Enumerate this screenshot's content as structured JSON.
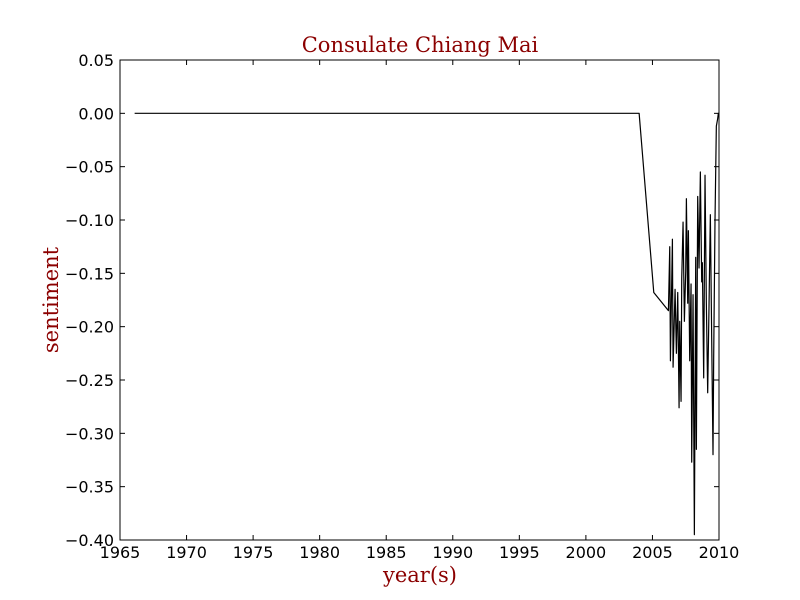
{
  "chart_data": {
    "type": "line",
    "title": "Consulate Chiang Mai",
    "xlabel": "year(s)",
    "ylabel": "sentiment",
    "xlim": [
      1965,
      2010
    ],
    "ylim": [
      -0.4,
      0.05
    ],
    "xticks": [
      1965,
      1970,
      1975,
      1980,
      1985,
      1990,
      1995,
      2000,
      2005,
      2010
    ],
    "yticks": [
      0.05,
      0.0,
      -0.05,
      -0.1,
      -0.15,
      -0.2,
      -0.25,
      -0.3,
      -0.35,
      -0.4
    ],
    "xtick_labels": [
      "1965",
      "1970",
      "1975",
      "1980",
      "1985",
      "1990",
      "1995",
      "2000",
      "2005",
      "2010"
    ],
    "ytick_labels": [
      "0.05",
      "0.00",
      "−0.05",
      "−0.10",
      "−0.15",
      "−0.20",
      "−0.25",
      "−0.30",
      "−0.35",
      "−0.40"
    ],
    "grid": false,
    "colors": {
      "title": "#8b0000",
      "axis_label": "#8b0000",
      "line": "#000000"
    },
    "series": [
      {
        "x": [
          1966.1,
          2004.0,
          2005.1,
          2006.2,
          2006.3,
          2006.35,
          2006.5,
          2006.55,
          2006.7,
          2006.8,
          2006.9,
          2007.0,
          2007.05,
          2007.15,
          2007.2,
          2007.3,
          2007.4,
          2007.5,
          2007.55,
          2007.65,
          2007.7,
          2007.8,
          2007.9,
          2007.95,
          2008.05,
          2008.15,
          2008.25,
          2008.3,
          2008.4,
          2008.5,
          2008.6,
          2008.7,
          2008.75,
          2008.85,
          2008.95,
          2009.05,
          2009.15,
          2009.25,
          2009.35,
          2009.45,
          2009.55,
          2009.6,
          2009.7,
          2009.8,
          2009.9,
          2009.95,
          2010.0
        ],
        "y": [
          0.0,
          0.0,
          -0.168,
          -0.185,
          -0.125,
          -0.232,
          -0.118,
          -0.238,
          -0.165,
          -0.225,
          -0.168,
          -0.276,
          -0.195,
          -0.27,
          -0.155,
          -0.102,
          -0.195,
          -0.148,
          -0.08,
          -0.178,
          -0.11,
          -0.232,
          -0.16,
          -0.327,
          -0.17,
          -0.395,
          -0.135,
          -0.315,
          -0.078,
          -0.145,
          -0.055,
          -0.158,
          -0.14,
          -0.248,
          -0.058,
          -0.178,
          -0.262,
          -0.18,
          -0.095,
          -0.21,
          -0.32,
          -0.23,
          -0.1,
          -0.012,
          -0.005,
          0.0,
          0.0
        ]
      }
    ]
  }
}
